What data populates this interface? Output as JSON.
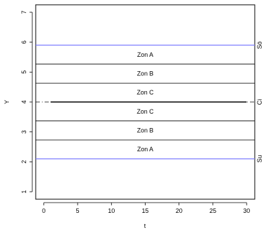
{
  "chart_data": {
    "type": "line",
    "title": "",
    "xlabel": "t",
    "ylabel": "Y",
    "xlim": [
      -1.2,
      31.2
    ],
    "ylim": [
      0.75,
      7.25
    ],
    "x_ticks": [
      0,
      5,
      10,
      15,
      20,
      25,
      30
    ],
    "y_ticks": [
      1,
      2,
      3,
      4,
      5,
      6,
      7
    ],
    "grid": false,
    "center_line": {
      "y": 4.0,
      "x_start": 1,
      "x_end": 30,
      "color": "#000000"
    },
    "control_limits": [
      {
        "label": "Sö",
        "y": 5.9,
        "color": "#7b7bff"
      },
      {
        "label": "Su",
        "y": 2.1,
        "color": "#7b7bff"
      }
    ],
    "zone_lines": [
      5.266,
      4.633,
      3.366,
      2.733
    ],
    "zone_lines_color": "#000000",
    "center_line_right_label": "Ci",
    "zone_labels": [
      {
        "label": "Zon A",
        "y": 5.583
      },
      {
        "label": "Zon B",
        "y": 4.95
      },
      {
        "label": "Zon C",
        "y": 4.316
      },
      {
        "label": "Zon C",
        "y": 3.683
      },
      {
        "label": "Zon B",
        "y": 3.05
      },
      {
        "label": "Zon A",
        "y": 2.416
      }
    ]
  }
}
